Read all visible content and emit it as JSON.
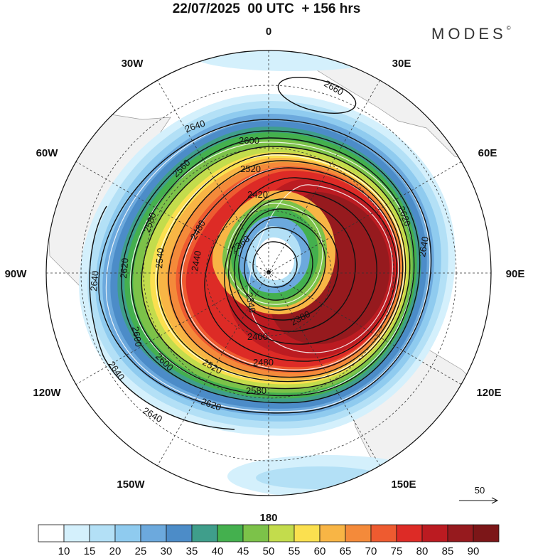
{
  "title": "22/07/2025  00 UTC  + 156 hrs",
  "brand": {
    "name": "MODES",
    "mark": "©"
  },
  "longitude_labels": [
    "0",
    "30E",
    "60E",
    "90E",
    "120E",
    "150E",
    "180",
    "150W",
    "120W",
    "90W",
    "60W",
    "30W"
  ],
  "contour_labels": [
    "2660",
    "2640",
    "2600",
    "2520",
    "2560",
    "2420",
    "2620",
    "2580",
    "2480",
    "2360",
    "2440",
    "2640",
    "2540",
    "2340",
    "2380",
    "2620",
    "2640",
    "2400",
    "2600",
    "2520",
    "2480",
    "2640",
    "2580",
    "2600",
    "2620",
    "2640"
  ],
  "reference_vector": {
    "label": "50"
  },
  "colorbar": {
    "levels": [
      "10",
      "15",
      "20",
      "25",
      "30",
      "35",
      "40",
      "45",
      "50",
      "55",
      "60",
      "65",
      "70",
      "75",
      "80",
      "85",
      "90"
    ],
    "colors": [
      "#ffffff",
      "#d4f0fc",
      "#b3e0f6",
      "#8fcbef",
      "#6ca9dd",
      "#4c8cc8",
      "#3f9e8b",
      "#44b04e",
      "#7cc249",
      "#c3dc4c",
      "#fbe04f",
      "#f8b545",
      "#f48a3a",
      "#ee5b30",
      "#dd2b26",
      "#bb1b21",
      "#961a1e",
      "#7c1618"
    ]
  }
}
